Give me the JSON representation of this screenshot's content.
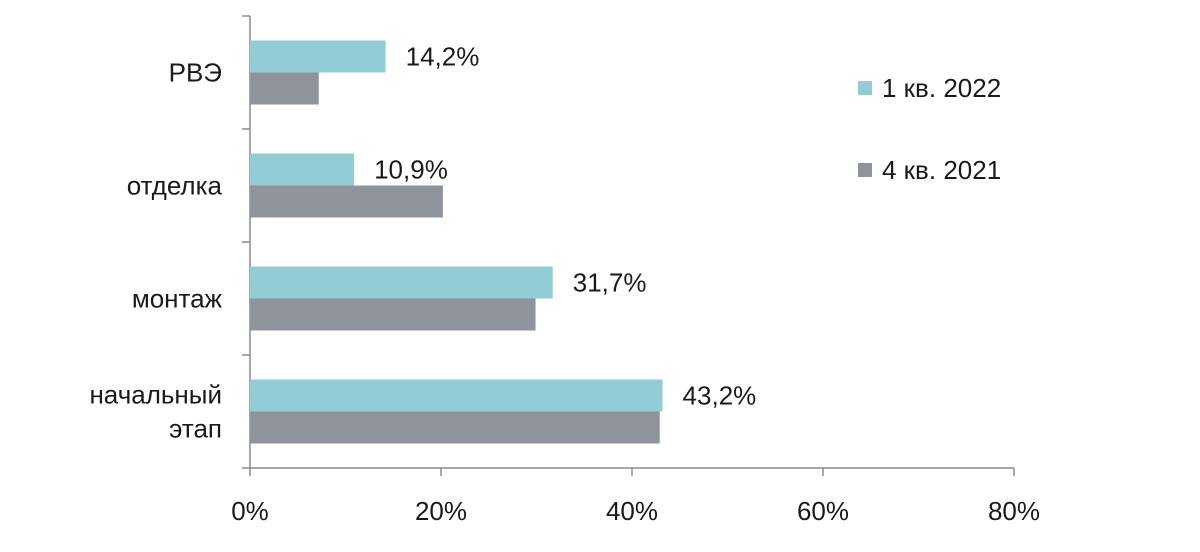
{
  "chart_data": {
    "type": "bar",
    "orientation": "horizontal",
    "categories": [
      [
        "РВЭ"
      ],
      [
        "отделка"
      ],
      [
        "монтаж"
      ],
      [
        "начальный",
        "этап"
      ]
    ],
    "series": [
      {
        "name": "1 кв. 2022",
        "color": "#92cdd6",
        "values": [
          14.2,
          10.9,
          31.7,
          43.2
        ],
        "labels": [
          "14,2%",
          "10,9%",
          "31,7%",
          "43,2%"
        ]
      },
      {
        "name": "4 кв. 2021",
        "color": "#8e949a",
        "values": [
          7.2,
          20.2,
          29.9,
          42.9
        ],
        "labels": []
      }
    ],
    "xlim": [
      0,
      80
    ],
    "xticks": [
      0,
      20,
      40,
      60,
      80
    ],
    "xtick_labels": [
      "0%",
      "20%",
      "40%",
      "60%",
      "80%"
    ],
    "grid": false,
    "legend_position": "right"
  }
}
